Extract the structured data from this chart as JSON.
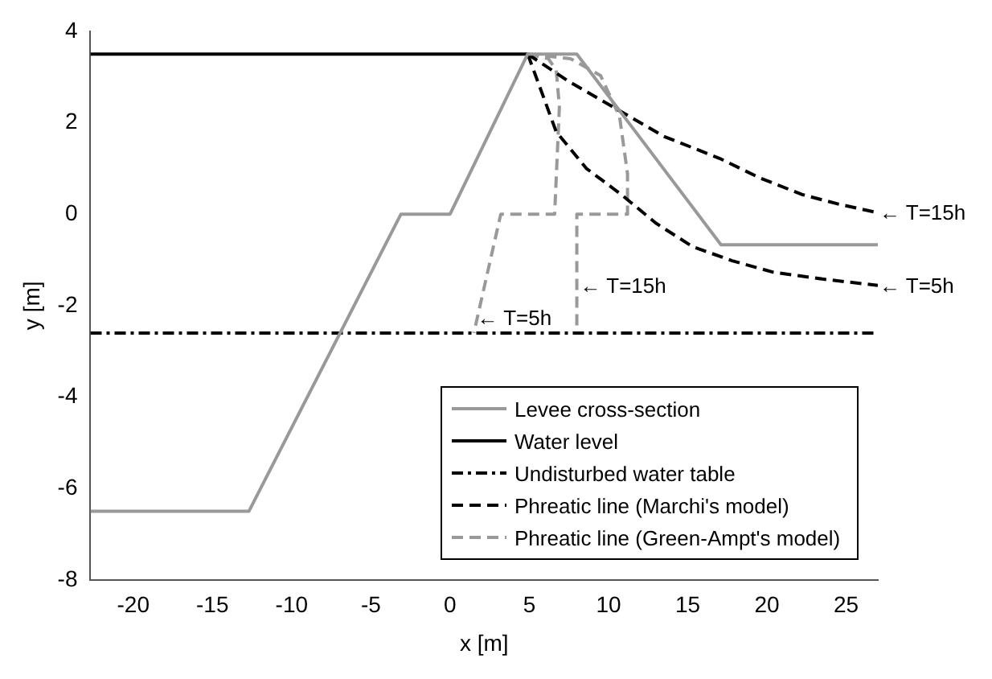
{
  "chart_data": {
    "type": "line",
    "xlabel": "x [m]",
    "ylabel": "y [m]",
    "xlim": [
      -22.7,
      27
    ],
    "ylim": [
      -8,
      4
    ],
    "xticks": [
      -20,
      -15,
      -10,
      -5,
      0,
      5,
      10,
      15,
      20,
      25
    ],
    "yticks": [
      -8,
      -6,
      -4,
      -2,
      0,
      2,
      4
    ],
    "grid": false,
    "legend": "bottom right",
    "marker": "none",
    "series": [
      {
        "name": "Levee cross-section",
        "color": "#999999",
        "line_style": "solid",
        "x": [
          -22.7,
          -12.7,
          -3.1,
          0,
          4.9,
          8,
          17.1,
          27
        ],
        "values": [
          -6.5,
          -6.5,
          0,
          0,
          3.5,
          3.5,
          -0.67,
          -0.67
        ]
      },
      {
        "name": "Water level",
        "color": "#000000",
        "line_style": "solid",
        "x": [
          -22.7,
          4.9
        ],
        "values": [
          3.5,
          3.5
        ]
      },
      {
        "name": "Undisturbed water table",
        "color": "#000000",
        "line_style": "dashdot",
        "x": [
          -22.7,
          27
        ],
        "values": [
          -2.6,
          -2.6
        ]
      },
      {
        "name": "Phreatic line (Marchi's model)",
        "color": "#000000",
        "line_style": "dashed",
        "x": [
          4.9,
          6.7,
          8.6,
          10.8,
          13,
          15.3,
          17.8,
          20.4,
          23.5,
          27
        ],
        "values": [
          3.5,
          1.8,
          1,
          0.43,
          -0.2,
          -0.71,
          -1.02,
          -1.27,
          -1.42,
          -1.56
        ]
      },
      {
        "color": "#000000",
        "line_style": "dashed",
        "x": [
          4.9,
          7.5,
          10.5,
          13.5,
          17,
          19.5,
          22.2,
          24.5,
          27
        ],
        "values": [
          3.5,
          2.9,
          2.3,
          1.7,
          1.22,
          0.8,
          0.43,
          0.22,
          0.03
        ]
      },
      {
        "name": "Phreatic line (Green-Ampt's model)",
        "color": "#999999",
        "line_style": "dashed",
        "x": [
          4.9,
          6.2,
          6.7,
          6.9,
          6.6,
          6.5,
          3.2,
          1.5
        ],
        "values": [
          3.5,
          3.4,
          3.15,
          2.35,
          0,
          0,
          0,
          -2.6
        ]
      },
      {
        "color": "#999999",
        "line_style": "dashed",
        "x": [
          4.9,
          7.6,
          9.5,
          10.7,
          11.2,
          11.2,
          8,
          8
        ],
        "values": [
          3.5,
          3.4,
          3.03,
          2.13,
          0.88,
          0,
          0,
          -2.6
        ]
      }
    ],
    "annotations": [
      {
        "text": "← T=15h",
        "x": 27,
        "y": 0
      },
      {
        "text": "← T=5h",
        "x": 27,
        "y": -1.6
      },
      {
        "text": "← T=15h",
        "x": 8.1,
        "y": -1.6
      },
      {
        "text": "← T=5h",
        "x": 1.6,
        "y": -2.3
      }
    ]
  }
}
